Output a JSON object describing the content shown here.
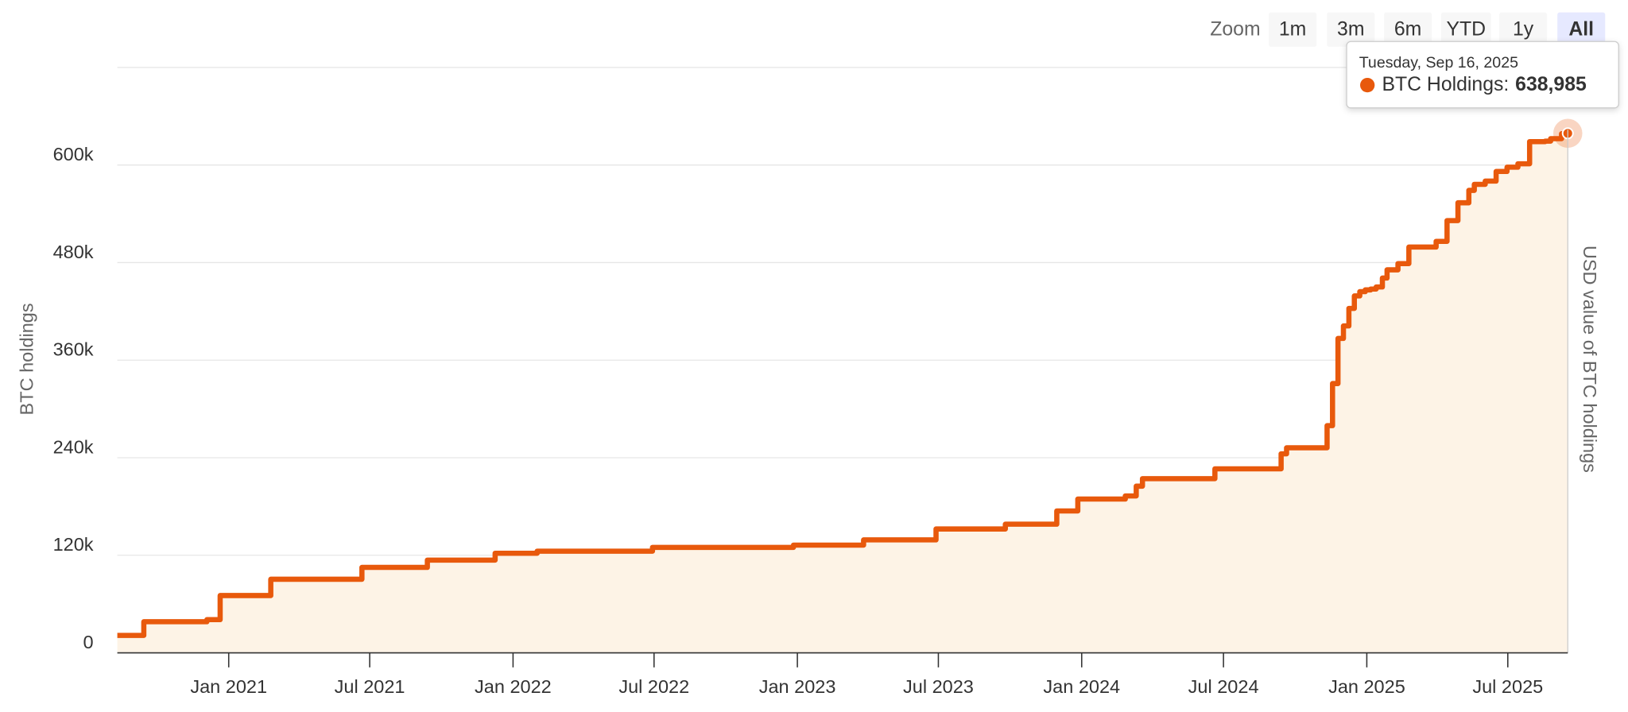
{
  "chart_data": {
    "type": "step-area",
    "y_axis_title": "BTC holdings",
    "y2_axis_title": "USD value of BTC holdings",
    "zoom": {
      "label": "Zoom",
      "buttons": [
        "1m",
        "3m",
        "6m",
        "YTD",
        "1y",
        "All"
      ],
      "selected": "All"
    },
    "tooltip": {
      "date": "Tuesday, Sep 16, 2025",
      "label": "BTC Holdings:",
      "value": "638,985"
    },
    "xlim": [
      "2020-08-11",
      "2025-09-16"
    ],
    "xticks": [
      {
        "value": "2021-01-01",
        "label": "Jan 2021"
      },
      {
        "value": "2021-07-01",
        "label": "Jul 2021"
      },
      {
        "value": "2022-01-01",
        "label": "Jan 2022"
      },
      {
        "value": "2022-07-01",
        "label": "Jul 2022"
      },
      {
        "value": "2023-01-01",
        "label": "Jan 2023"
      },
      {
        "value": "2023-07-01",
        "label": "Jul 2023"
      },
      {
        "value": "2024-01-01",
        "label": "Jan 2024"
      },
      {
        "value": "2024-07-01",
        "label": "Jul 2024"
      },
      {
        "value": "2025-01-01",
        "label": "Jan 2025"
      },
      {
        "value": "2025-07-01",
        "label": "Jul 2025"
      }
    ],
    "ylim": [
      0,
      720000
    ],
    "yticks": [
      0,
      {
        "value": 120000,
        "label": "120k"
      },
      {
        "value": 240000,
        "label": "240k"
      },
      {
        "value": 360000,
        "label": "360k"
      },
      {
        "value": 480000,
        "label": "480k"
      },
      {
        "value": 600000,
        "label": "600k"
      }
    ],
    "grid": true,
    "x": [
      "2020-08-11",
      "2020-09-14",
      "2020-12-04",
      "2020-12-21",
      "2021-02-24",
      "2021-06-21",
      "2021-09-13",
      "2021-12-09",
      "2022-02-01",
      "2022-06-29",
      "2022-12-27",
      "2023-03-27",
      "2023-06-28",
      "2023-09-25",
      "2023-11-30",
      "2023-12-27",
      "2024-02-26",
      "2024-03-11",
      "2024-03-19",
      "2024-06-20",
      "2024-09-13",
      "2024-09-20",
      "2024-11-11",
      "2024-11-18",
      "2024-11-25",
      "2024-12-02",
      "2024-12-09",
      "2024-12-16",
      "2024-12-23",
      "2024-12-30",
      "2025-01-06",
      "2025-01-13",
      "2025-01-21",
      "2025-01-27",
      "2025-02-10",
      "2025-02-24",
      "2025-03-31",
      "2025-04-14",
      "2025-04-28",
      "2025-05-12",
      "2025-05-19",
      "2025-06-02",
      "2025-06-16",
      "2025-06-30",
      "2025-07-14",
      "2025-07-29",
      "2025-08-18",
      "2025-08-25",
      "2025-09-08",
      "2025-09-16"
    ],
    "series": [
      {
        "name": "BTC Holdings",
        "color": "#e8590c",
        "fill": "#fdf3e6",
        "values": [
          21454,
          38250,
          40824,
          70470,
          90531,
          105085,
          114042,
          122478,
          125051,
          129699,
          132500,
          138955,
          152333,
          158245,
          174530,
          189150,
          193000,
          205000,
          214246,
          226331,
          244800,
          252220,
          279420,
          331200,
          386700,
          402100,
          423650,
          439000,
          444262,
          446400,
          447470,
          450000,
          461000,
          471107,
          478740,
          499096,
          506137,
          531644,
          553555,
          568840,
          576230,
          580250,
          592100,
          597325,
          601550,
          628791,
          629376,
          632457,
          638460,
          638985
        ]
      }
    ]
  }
}
